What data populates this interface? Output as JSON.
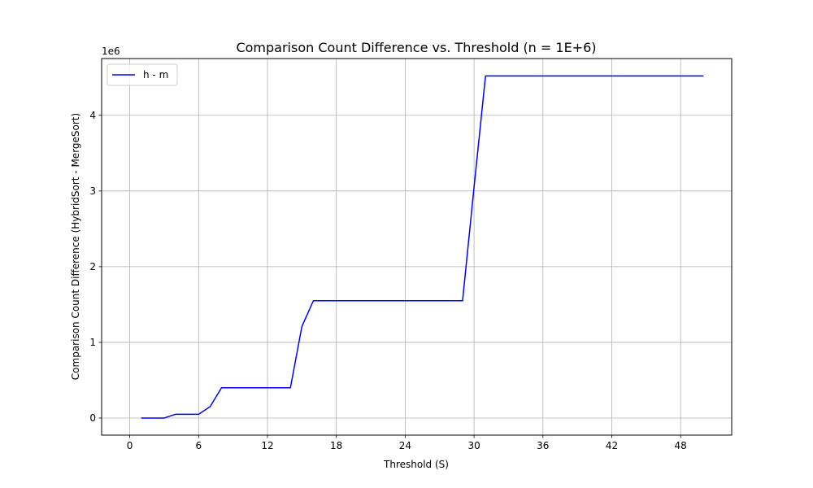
{
  "chart_data": {
    "type": "line",
    "title": "Comparison Count Difference vs. Threshold (n = 1E+6)",
    "xlabel": "Threshold (S)",
    "ylabel": "Comparison Count Difference (HybridSort - MergeSort)",
    "y_offset_text": "1e6",
    "xlim": [
      -2.45,
      52.45
    ],
    "ylim": [
      -0.226,
      4.75
    ],
    "y_scale_factor": 1000000,
    "xticks": [
      0,
      6,
      12,
      18,
      24,
      30,
      36,
      42,
      48
    ],
    "yticks": [
      0,
      1,
      2,
      3,
      4
    ],
    "grid": true,
    "legend_position": "upper-left",
    "series": [
      {
        "name": "h - m",
        "color": "#0000ff",
        "x": [
          1,
          2,
          3,
          4,
          5,
          6,
          7,
          8,
          9,
          10,
          11,
          12,
          13,
          14,
          15,
          16,
          17,
          18,
          19,
          20,
          21,
          22,
          23,
          24,
          25,
          26,
          27,
          28,
          29,
          30,
          31,
          32,
          33,
          34,
          35,
          36,
          37,
          38,
          39,
          40,
          41,
          42,
          43,
          44,
          45,
          46,
          47,
          48,
          49,
          50
        ],
        "y": [
          0,
          0,
          0,
          50000,
          50000,
          50000,
          150000,
          400000,
          400000,
          400000,
          400000,
          400000,
          400000,
          400000,
          1210000,
          1550000,
          1550000,
          1550000,
          1550000,
          1550000,
          1550000,
          1550000,
          1550000,
          1550000,
          1550000,
          1550000,
          1550000,
          1550000,
          1550000,
          3050000,
          4520000,
          4520000,
          4520000,
          4520000,
          4520000,
          4520000,
          4520000,
          4520000,
          4520000,
          4520000,
          4520000,
          4520000,
          4520000,
          4520000,
          4520000,
          4520000,
          4520000,
          4520000,
          4520000,
          4520000
        ]
      }
    ]
  }
}
